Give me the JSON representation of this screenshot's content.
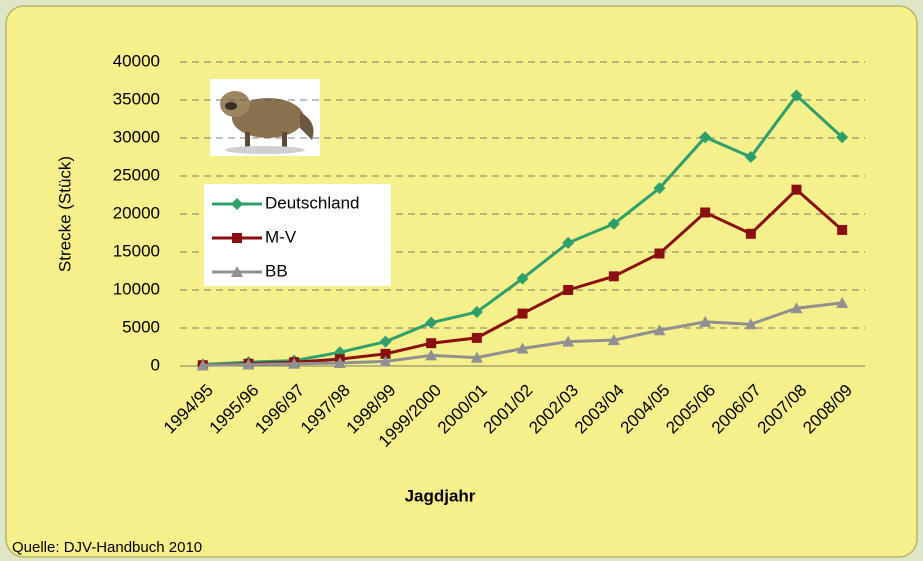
{
  "chart_data": {
    "type": "line",
    "y_label": "Strecke (Stück)",
    "x_label": "Jagdjahr",
    "source": "Quelle: DJV-Handbuch 2010",
    "categories": [
      "1994/95",
      "1995/96",
      "1996/97",
      "1997/98",
      "1998/99",
      "1999/2000",
      "2000/01",
      "2001/02",
      "2002/03",
      "2003/04",
      "2004/05",
      "2005/06",
      "2006/07",
      "2007/08",
      "2008/09"
    ],
    "series": [
      {
        "name": "Deutschland",
        "color": "#2e9e6a",
        "marker": "diamond",
        "values": [
          200,
          500,
          700,
          1800,
          3200,
          5700,
          7100,
          11500,
          16200,
          18700,
          23400,
          30100,
          27500,
          35600,
          30100
        ]
      },
      {
        "name": "M-V",
        "color": "#8b0f0f",
        "marker": "square",
        "values": [
          100,
          300,
          500,
          900,
          1600,
          3000,
          3700,
          6900,
          10000,
          11800,
          14800,
          20200,
          17400,
          23200,
          17900
        ]
      },
      {
        "name": "BB",
        "color": "#909090",
        "marker": "triangle",
        "values": [
          100,
          200,
          300,
          400,
          600,
          1400,
          1100,
          2300,
          3200,
          3400,
          4700,
          5800,
          5500,
          7600,
          8300
        ]
      }
    ],
    "ylim": [
      0,
      40000
    ],
    "yticks": [
      0,
      5000,
      10000,
      15000,
      20000,
      25000,
      30000,
      35000,
      40000
    ],
    "grid": true
  }
}
